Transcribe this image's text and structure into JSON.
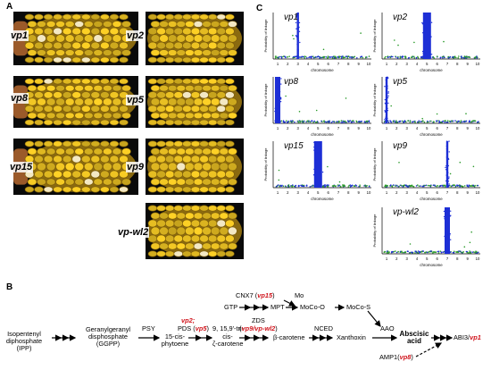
{
  "panels": {
    "a": "A",
    "b": "B",
    "c": "C"
  },
  "panel_a": {
    "mutants": [
      "vp1",
      "vp2",
      "vp8",
      "vp5",
      "vp15",
      "vp9",
      "vp-wl2"
    ],
    "kernel_color": "#e9c023",
    "cob_color": "#9b5a2a"
  },
  "panel_c": {
    "ylabel": "Probability of linkage",
    "xlabel": "chromosome",
    "chromosome_ticks": [
      "1",
      "2",
      "3",
      "4",
      "5",
      "6",
      "7",
      "8",
      "9",
      "10"
    ],
    "colors": {
      "blue": "#1d2fd6",
      "green": "#2a9a2a"
    },
    "plots": [
      {
        "mutant": "vp1",
        "peak_chromosome": 3,
        "peak_width": "narrow"
      },
      {
        "mutant": "vp2",
        "peak_chromosome": 5,
        "peak_width": "wide"
      },
      {
        "mutant": "vp8",
        "peak_chromosome": 1,
        "peak_width": "medium"
      },
      {
        "mutant": "vp5",
        "peak_chromosome": 1,
        "peak_width": "narrow"
      },
      {
        "mutant": "vp15",
        "peak_chromosome": 5,
        "peak_width": "wide"
      },
      {
        "mutant": "vp9",
        "peak_chromosome": 7,
        "peak_width": "narrow"
      },
      {
        "mutant": "vp-wl2",
        "peak_chromosome": 7,
        "peak_width": "medium"
      }
    ]
  },
  "panel_b": {
    "ipp": [
      "Isopentenyl",
      "diphosphate",
      "(IPP)"
    ],
    "ggpp": [
      "Geranylgeranyl",
      "disphosphate",
      "(GGPP)"
    ],
    "psy": "PSY",
    "phytoene": [
      "15-cis-",
      "phytoene"
    ],
    "pds_gene": "vp2;",
    "pds_prefix": "PDS (",
    "pds_mutant": "vp5",
    "pds_suffix": ")",
    "carotene_9": "9, 15,9'-tri-",
    "carotene_9b": [
      "cis-",
      "ζ-carotene"
    ],
    "zds_label": "ZDS",
    "zds_prefix": "(",
    "zds_mutants": "vp9/vp-wl2",
    "zds_suffix": ")",
    "beta_carotene": "β-carotene",
    "nced": "NCED",
    "xanthoxin": "Xanthoxin",
    "aao": "AAO",
    "aba": [
      "Abscisic",
      "acid"
    ],
    "abi3_prefix": "ABI3/",
    "abi3_mutant": "vp1",
    "cnx7_prefix": "CNX7 (",
    "cnx7_mutant": "vp15",
    "cnx7_suffix": ")",
    "mo": "Mo",
    "gtp": "GTP",
    "mpt": "MPT",
    "moco_o": "MoCo-O",
    "moco_s": "MoCo-S",
    "amp1_prefix": "AMP1(",
    "amp1_mutant": "vp8",
    "amp1_suffix": ")"
  }
}
